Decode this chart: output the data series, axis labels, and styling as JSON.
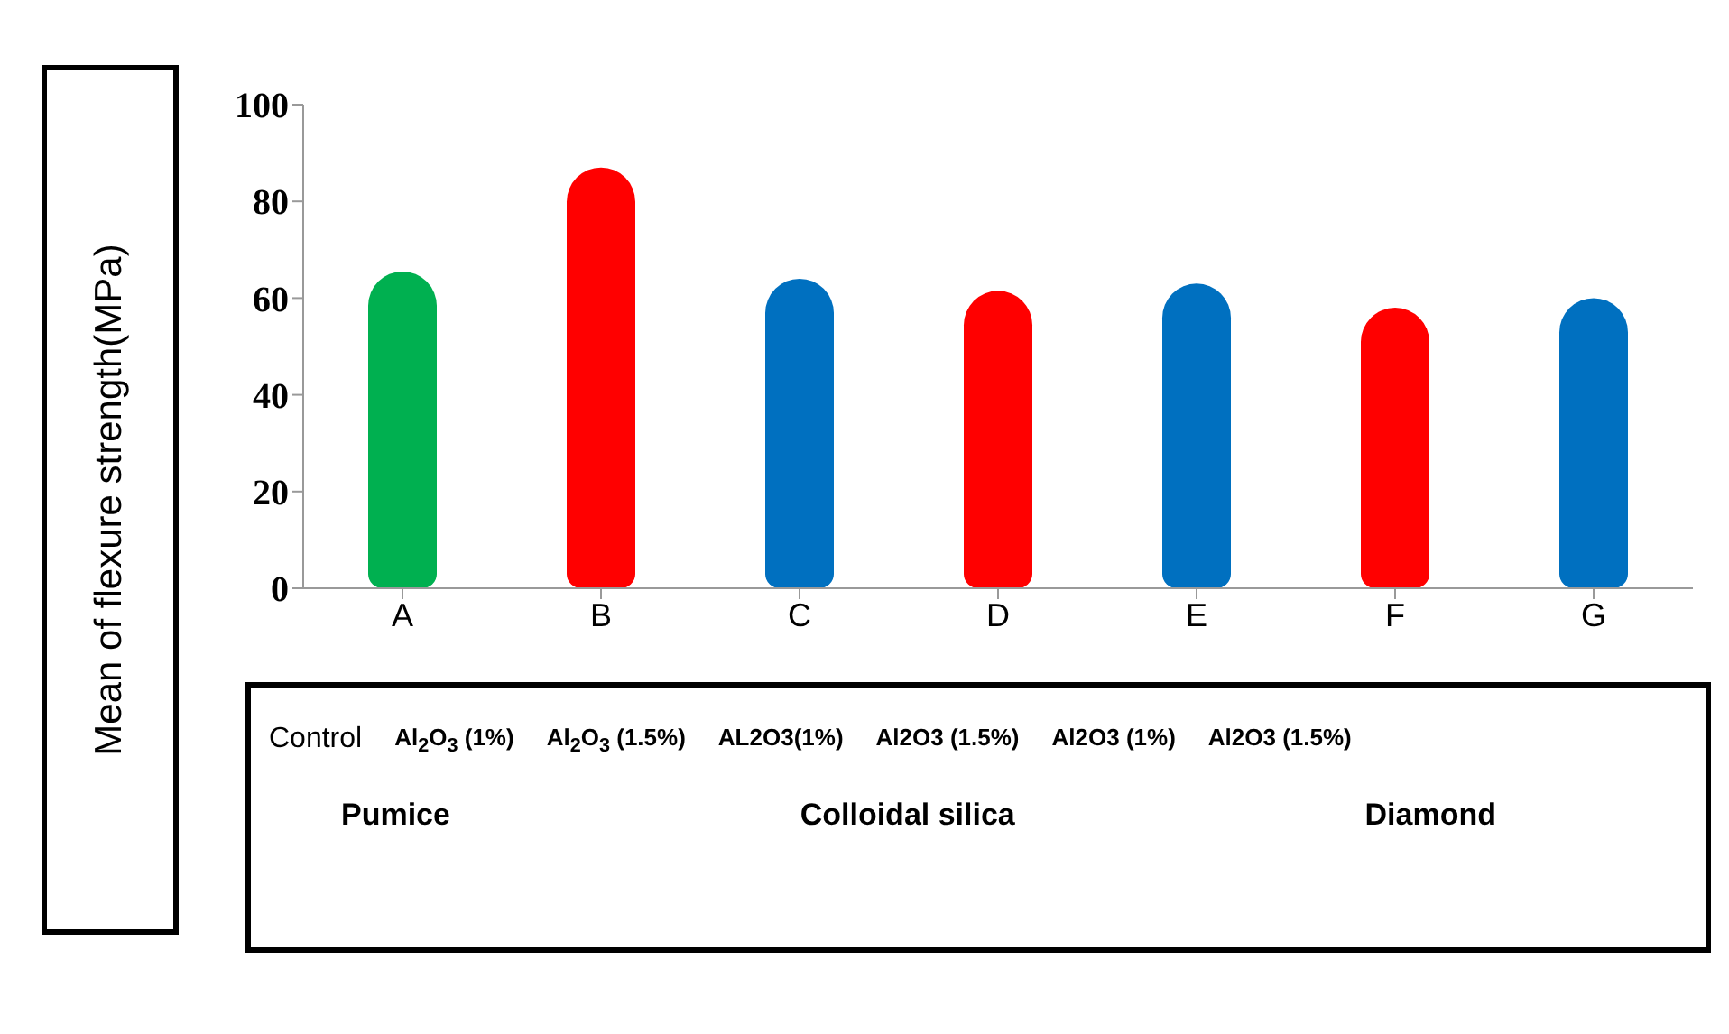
{
  "chart_data": {
    "type": "bar",
    "ylabel": "Mean of flexure strength(MPa)",
    "categories": [
      "A",
      "B",
      "C",
      "D",
      "E",
      "F",
      "G"
    ],
    "values": [
      65.5,
      87,
      64,
      61.5,
      63,
      58,
      60
    ],
    "colors": [
      "#00b050",
      "#ff0000",
      "#0070c0",
      "#ff0000",
      "#0070c0",
      "#ff0000",
      "#0070c0"
    ],
    "ylim": [
      0,
      100
    ],
    "yticks": [
      0,
      20,
      40,
      60,
      80,
      100
    ],
    "annotations": [
      "Control",
      "Al$_{2}$O$_{3}$ (1%)",
      "Al$_{2}$O$_{3}$ (1.5%)",
      "AL2O3(1%)",
      "Al2O3 (1.5%)",
      "Al2O3 (1%)",
      "Al2O3 (1.5%)",
      "Pumice",
      "Colloidal silica",
      "Diamond"
    ]
  }
}
